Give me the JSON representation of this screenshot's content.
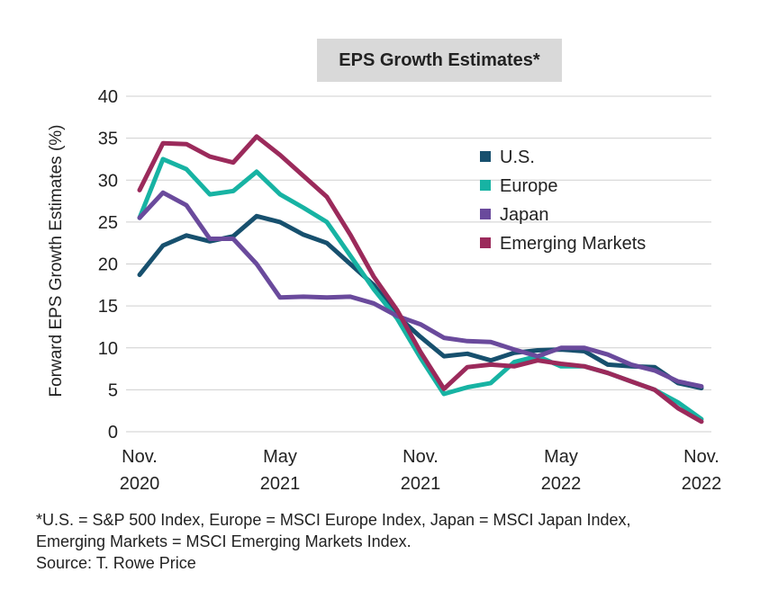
{
  "chart_data": {
    "type": "line",
    "title": "EPS Growth Estimates*",
    "ylabel": "Forward EPS Growth Estimates (%)",
    "xlabel": "",
    "ylim": [
      0,
      40
    ],
    "yticks": [
      0,
      5,
      10,
      15,
      20,
      25,
      30,
      35,
      40
    ],
    "x_ticks": [
      {
        "month": 0,
        "line1": "Nov.",
        "line2": "2020"
      },
      {
        "month": 6,
        "line1": "May",
        "line2": "2021"
      },
      {
        "month": 12,
        "line1": "Nov.",
        "line2": "2021"
      },
      {
        "month": 18,
        "line1": "May",
        "line2": "2022"
      },
      {
        "month": 24,
        "line1": "Nov.",
        "line2": "2022"
      }
    ],
    "x": [
      "2020-11",
      "2020-12",
      "2021-01",
      "2021-02",
      "2021-03",
      "2021-04",
      "2021-05",
      "2021-06",
      "2021-07",
      "2021-08",
      "2021-09",
      "2021-10",
      "2021-11",
      "2021-12",
      "2022-01",
      "2022-02",
      "2022-03",
      "2022-04",
      "2022-05",
      "2022-06",
      "2022-07",
      "2022-08",
      "2022-09",
      "2022-10",
      "2022-11"
    ],
    "grid": true,
    "legend_position": "top-right",
    "series": [
      {
        "name": "U.S.",
        "color": "#17506e",
        "values": [
          18.7,
          22.2,
          23.4,
          22.7,
          23.3,
          25.7,
          25.0,
          23.5,
          22.5,
          20.0,
          17.5,
          13.8,
          11.3,
          9.0,
          9.3,
          8.5,
          9.4,
          9.7,
          9.8,
          9.6,
          8.0,
          7.8,
          7.7,
          5.8,
          5.2
        ]
      },
      {
        "name": "Europe",
        "color": "#17b3a3",
        "values": [
          25.5,
          32.5,
          31.3,
          28.3,
          28.7,
          31.0,
          28.3,
          26.7,
          25.0,
          21.0,
          17.0,
          13.5,
          8.8,
          4.5,
          5.3,
          5.8,
          8.3,
          9.0,
          7.8,
          7.8,
          7.0,
          6.0,
          5.0,
          3.5,
          1.5
        ]
      },
      {
        "name": "Japan",
        "color": "#6a4a9c",
        "values": [
          25.5,
          28.5,
          27.0,
          23.0,
          23.0,
          20.0,
          16.0,
          16.1,
          16.0,
          16.1,
          15.3,
          13.8,
          12.8,
          11.2,
          10.8,
          10.7,
          9.8,
          9.0,
          10.0,
          10.0,
          9.2,
          8.0,
          7.3,
          6.0,
          5.4
        ]
      },
      {
        "name": "Emerging Markets",
        "color": "#9b2a5b",
        "values": [
          28.8,
          34.4,
          34.3,
          32.8,
          32.1,
          35.2,
          33.0,
          30.5,
          28.0,
          23.5,
          18.5,
          14.5,
          9.5,
          5.1,
          7.7,
          8.0,
          7.8,
          8.5,
          8.1,
          7.8,
          7.0,
          6.0,
          5.0,
          2.8,
          1.2
        ]
      }
    ]
  },
  "footnote": {
    "line1": "*U.S. = S&P 500 Index, Europe = MSCI Europe Index, Japan = MSCI Japan Index,",
    "line2": "Emerging Markets = MSCI Emerging Markets Index.",
    "source": "Source: T. Rowe Price"
  }
}
